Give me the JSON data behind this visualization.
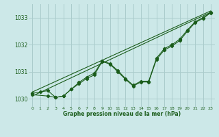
{
  "background_color": "#cce8e8",
  "grid_color": "#aacccc",
  "line_color": "#1a5c1a",
  "title": "Graphe pression niveau de la mer (hPa)",
  "xlim": [
    -0.5,
    23.5
  ],
  "ylim": [
    1029.7,
    1033.5
  ],
  "xticks": [
    0,
    1,
    2,
    3,
    4,
    5,
    6,
    7,
    8,
    9,
    10,
    11,
    12,
    13,
    14,
    15,
    16,
    17,
    18,
    19,
    20,
    21,
    22,
    23
  ],
  "yticks": [
    1030,
    1031,
    1032,
    1033
  ],
  "line1": {
    "x": [
      0,
      23
    ],
    "y": [
      1030.1,
      1033.2
    ]
  },
  "line2": {
    "x": [
      0,
      23
    ],
    "y": [
      1030.25,
      1033.25
    ]
  },
  "wiggly1": {
    "x": [
      0,
      1,
      2,
      3,
      4,
      5,
      6,
      7,
      8,
      9,
      10,
      11,
      12,
      13,
      14,
      15,
      16,
      17,
      18,
      19,
      20,
      21,
      22,
      23
    ],
    "y": [
      1030.2,
      1030.25,
      1030.3,
      1030.05,
      1030.1,
      1030.35,
      1030.6,
      1030.8,
      1030.95,
      1031.4,
      1031.3,
      1031.05,
      1030.75,
      1030.5,
      1030.65,
      1030.65,
      1031.5,
      1031.85,
      1032.0,
      1032.2,
      1032.55,
      1032.85,
      1033.0,
      1033.2
    ]
  },
  "wiggly2": {
    "x": [
      0,
      2,
      3,
      4,
      5,
      6,
      7,
      8,
      9,
      10,
      11,
      12,
      13,
      14,
      15,
      16,
      17,
      18,
      19,
      20,
      21,
      22,
      23
    ],
    "y": [
      1030.15,
      1030.1,
      1030.05,
      1030.1,
      1030.35,
      1030.55,
      1030.75,
      1030.88,
      1031.38,
      1031.28,
      1031.0,
      1030.72,
      1030.47,
      1030.62,
      1030.62,
      1031.45,
      1031.8,
      1031.95,
      1032.15,
      1032.5,
      1032.82,
      1032.97,
      1033.18
    ]
  }
}
